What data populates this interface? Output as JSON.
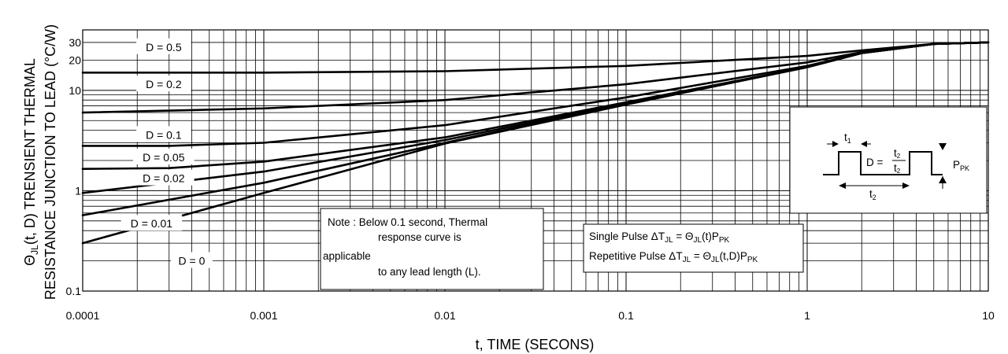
{
  "chart_data": {
    "type": "line",
    "title": "",
    "xlabel": "t,  TIME (SECONS)",
    "ylabel_line1": "RESISTANCE JUNCTION TO LEAD (°C/W)",
    "ylabel_prefix": "Θ",
    "ylabel_sub": "JL",
    "ylabel_rest": "(t, D) TRENSIENT THERMAL",
    "x_scale": "log",
    "y_scale": "log",
    "xlim": [
      0.0001,
      10
    ],
    "ylim": [
      0.1,
      40
    ],
    "grid": true,
    "x_ticks": [
      {
        "value": 0.0001,
        "label": "0.0001"
      },
      {
        "value": 0.001,
        "label": "0.001"
      },
      {
        "value": 0.01,
        "label": "0.01"
      },
      {
        "value": 0.1,
        "label": "0.1"
      },
      {
        "value": 1,
        "label": "1"
      },
      {
        "value": 10,
        "label": "10"
      }
    ],
    "y_ticks": [
      {
        "value": 0.1,
        "label": "0.1"
      },
      {
        "value": 1,
        "label": "1"
      },
      {
        "value": 10,
        "label": "10"
      },
      {
        "value": 20,
        "label": "20"
      },
      {
        "value": 30,
        "label": "30"
      }
    ],
    "series": [
      {
        "name": "D = 0.5",
        "label_pos": {
          "x": 0.00028,
          "y": 27
        },
        "points": [
          [
            0.0001,
            15
          ],
          [
            0.001,
            15
          ],
          [
            0.01,
            15.5
          ],
          [
            0.1,
            17.5
          ],
          [
            1,
            22
          ],
          [
            2,
            25
          ],
          [
            5,
            29
          ],
          [
            10,
            30
          ]
        ]
      },
      {
        "name": "D = 0.2",
        "label_pos": {
          "x": 0.00028,
          "y": 11.5
        },
        "points": [
          [
            0.0001,
            6.0
          ],
          [
            0.001,
            6.6
          ],
          [
            0.01,
            8.0
          ],
          [
            0.1,
            11.5
          ],
          [
            1,
            19
          ],
          [
            2,
            24
          ],
          [
            5,
            29
          ],
          [
            10,
            30
          ]
        ]
      },
      {
        "name": "D = 0.1",
        "label_pos": {
          "x": 0.00028,
          "y": 3.6
        },
        "points": [
          [
            0.0001,
            2.8
          ],
          [
            0.0003,
            2.8
          ],
          [
            0.001,
            3.0
          ],
          [
            0.01,
            4.5
          ],
          [
            0.1,
            8.5
          ],
          [
            1,
            17.5
          ],
          [
            2,
            23.5
          ],
          [
            5,
            29
          ],
          [
            10,
            30
          ]
        ]
      },
      {
        "name": "D = 0.05",
        "label_pos": {
          "x": 0.00028,
          "y": 2.15
        },
        "points": [
          [
            0.0001,
            1.65
          ],
          [
            0.0003,
            1.68
          ],
          [
            0.001,
            1.95
          ],
          [
            0.01,
            3.4
          ],
          [
            0.1,
            7.6
          ],
          [
            1,
            17
          ],
          [
            2,
            23.5
          ],
          [
            5,
            29
          ],
          [
            10,
            30
          ]
        ]
      },
      {
        "name": "D = 0.02",
        "label_pos": {
          "x": 0.00028,
          "y": 1.33
        },
        "points": [
          [
            0.0001,
            0.95
          ],
          [
            0.001,
            1.55
          ],
          [
            0.01,
            3.2
          ],
          [
            0.1,
            7.4
          ],
          [
            1,
            17
          ],
          [
            2,
            23.5
          ],
          [
            5,
            29
          ],
          [
            10,
            30
          ]
        ]
      },
      {
        "name": "D = 0.01",
        "label_pos": {
          "x": 0.00024,
          "y": 0.47
        },
        "points": [
          [
            0.0001,
            0.57
          ],
          [
            0.001,
            1.2
          ],
          [
            0.01,
            3.0
          ],
          [
            0.1,
            7.3
          ],
          [
            1,
            17
          ],
          [
            2,
            23.5
          ],
          [
            5,
            29
          ],
          [
            10,
            30
          ]
        ]
      },
      {
        "name": "D = 0",
        "label_pos": {
          "x": 0.0004,
          "y": 0.2
        },
        "points": [
          [
            0.0001,
            0.3
          ],
          [
            0.001,
            0.95
          ],
          [
            0.01,
            2.95
          ],
          [
            0.1,
            7.2
          ],
          [
            1,
            17
          ],
          [
            2,
            23.5
          ],
          [
            5,
            29
          ],
          [
            10,
            30
          ]
        ]
      }
    ],
    "notes": {
      "lines": [
        "Note : Below 0.1 second, Thermal",
        "response curve is",
        "applicable",
        "to any lead length (L)."
      ]
    },
    "formulas": {
      "single_prefix": "Single Pulse  ΔT",
      "single_sub": "JL",
      "single_mid": " = Θ",
      "single_sub2": "JL",
      "single_end": "(t)P",
      "single_sub3": "PK",
      "rep_prefix": "Repetitive Pulse ΔT",
      "rep_sub": "JL",
      "rep_mid": " = Θ",
      "rep_sub2": "JL",
      "rep_end": "(t,D)P",
      "rep_sub3": "PK"
    },
    "inset": {
      "t1": "t",
      "t1_sub": "1",
      "t2": "t",
      "t2_sub": "2",
      "d_eq": "D =",
      "frac_num": "t",
      "frac_num_sub": "2",
      "frac_den": "t",
      "frac_den_sub": "2",
      "ppk": "P",
      "ppk_sub": "PK"
    }
  }
}
